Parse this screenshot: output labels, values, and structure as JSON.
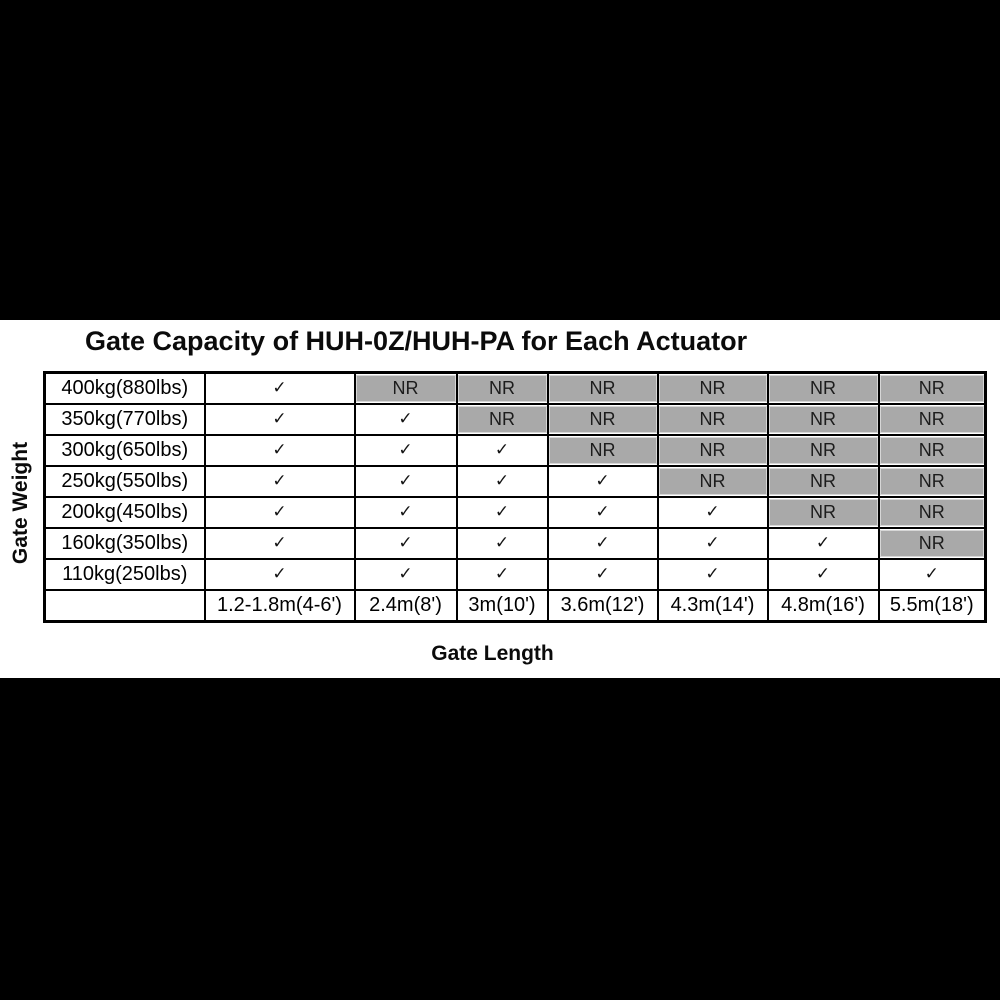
{
  "chart_data": {
    "type": "table",
    "title": "Gate Capacity of HUH-0Z/HUH-PA for Each Actuator",
    "x_axis_label": "Gate Length",
    "y_axis_label": "Gate Weight",
    "columns": [
      "1.2-1.8m(4-6')",
      "2.4m(8')",
      "3m(10')",
      "3.6m(12')",
      "4.3m(14')",
      "4.8m(16')",
      "5.5m(18')"
    ],
    "rows": [
      {
        "label": "400kg(880lbs)",
        "values": [
          "✓",
          "NR",
          "NR",
          "NR",
          "NR",
          "NR",
          "NR"
        ]
      },
      {
        "label": "350kg(770lbs)",
        "values": [
          "✓",
          "✓",
          "NR",
          "NR",
          "NR",
          "NR",
          "NR"
        ]
      },
      {
        "label": "300kg(650lbs)",
        "values": [
          "✓",
          "✓",
          "✓",
          "NR",
          "NR",
          "NR",
          "NR"
        ]
      },
      {
        "label": "250kg(550lbs)",
        "values": [
          "✓",
          "✓",
          "✓",
          "✓",
          "NR",
          "NR",
          "NR"
        ]
      },
      {
        "label": "200kg(450lbs)",
        "values": [
          "✓",
          "✓",
          "✓",
          "✓",
          "✓",
          "NR",
          "NR"
        ]
      },
      {
        "label": "160kg(350lbs)",
        "values": [
          "✓",
          "✓",
          "✓",
          "✓",
          "✓",
          "✓",
          "NR"
        ]
      },
      {
        "label": "110kg(250lbs)",
        "values": [
          "✓",
          "✓",
          "✓",
          "✓",
          "✓",
          "✓",
          "✓"
        ]
      }
    ],
    "corner_cell": ""
  },
  "symbols": {
    "check": "✓",
    "nr": "NR"
  },
  "colors": {
    "page_bg": "#000000",
    "panel_bg": "#ffffff",
    "table_border": "#000000",
    "nr_fill": "#a9a9a9",
    "nr_inner_border": "#d6d6d6"
  }
}
